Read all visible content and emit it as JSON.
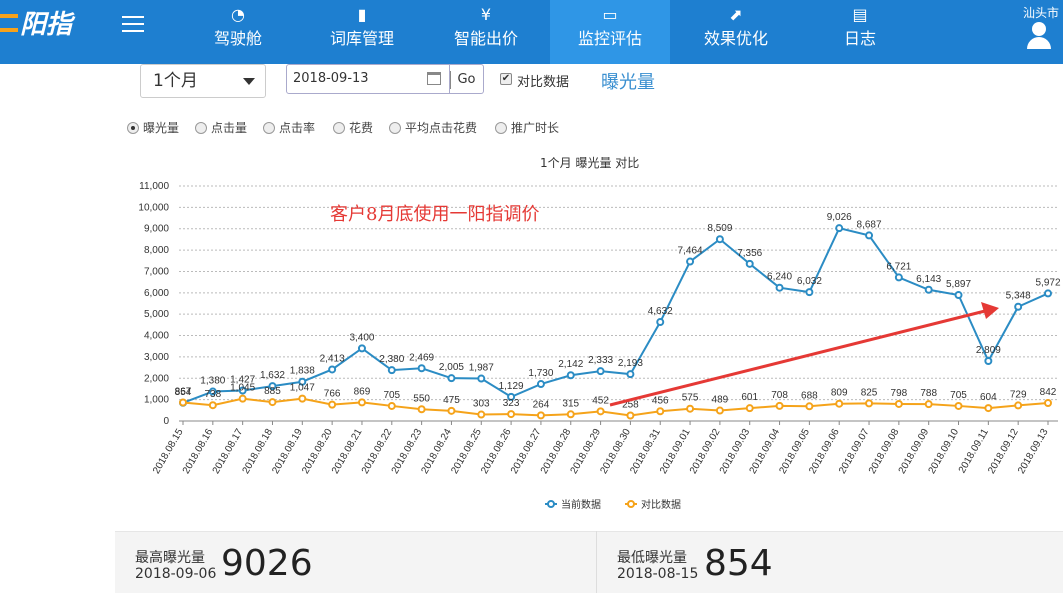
{
  "header": {
    "logo_text": "阳指",
    "city": "汕头市",
    "nav": [
      {
        "label": "驾驶舱",
        "icon": "dashboard-icon"
      },
      {
        "label": "词库管理",
        "icon": "bookmark-icon"
      },
      {
        "label": "智能出价",
        "icon": "yen-icon"
      },
      {
        "label": "监控评估",
        "icon": "monitor-icon"
      },
      {
        "label": "效果优化",
        "icon": "trend-icon"
      },
      {
        "label": "日志",
        "icon": "clipboard-icon"
      }
    ],
    "active_nav": "监控评估"
  },
  "controls": {
    "period": "1个月",
    "date": "2018-09-13",
    "go": "Go",
    "compare_label": "对比数据",
    "compare_checked": true,
    "metric_title": "曝光量"
  },
  "metrics": [
    {
      "label": "曝光量",
      "checked": true
    },
    {
      "label": "点击量",
      "checked": false
    },
    {
      "label": "点击率",
      "checked": false
    },
    {
      "label": "花费",
      "checked": false
    },
    {
      "label": "平均点击花费",
      "checked": false
    },
    {
      "label": "推广时长",
      "checked": false
    }
  ],
  "chart_caption": "1个月  曝光量  对比",
  "chart_data": {
    "type": "line",
    "ylim": [
      0,
      11000
    ],
    "yticks": [
      "0",
      "1,000",
      "2,000",
      "3,000",
      "4,000",
      "5,000",
      "6,000",
      "7,000",
      "8,000",
      "9,000",
      "10,000",
      "11,000"
    ],
    "categories": [
      "2018.08.15",
      "2018.08.16",
      "2018.08.17",
      "2018.08.18",
      "2018.08.19",
      "2018.08.20",
      "2018.08.21",
      "2018.08.22",
      "2018.08.23",
      "2018.08.24",
      "2018.08.25",
      "2018.08.26",
      "2018.08.27",
      "2018.08.28",
      "2018.08.29",
      "2018.08.30",
      "2018.08.31",
      "2018.09.01",
      "2018.09.02",
      "2018.09.03",
      "2018.09.04",
      "2018.09.05",
      "2018.09.06",
      "2018.09.07",
      "2018.09.08",
      "2018.09.09",
      "2018.09.10",
      "2018.09.11",
      "2018.09.12",
      "2018.09.13"
    ],
    "series": [
      {
        "name": "当前数据",
        "color": "#2b8cc4",
        "values": [
          854,
          1380,
          1427,
          1632,
          1838,
          2413,
          3400,
          2380,
          2469,
          2005,
          1987,
          1129,
          1730,
          2142,
          2333,
          2193,
          4632,
          7464,
          8509,
          7356,
          6240,
          6032,
          9026,
          8687,
          6721,
          6143,
          5897,
          2809,
          5348,
          5972
        ],
        "labels": [
          "854",
          "1,380",
          "1,427",
          "1,632",
          "1,838",
          "2,413",
          "3,400",
          "2,380",
          "2,469",
          "2,005",
          "1,987",
          "1,129",
          "1,730",
          "2,142",
          "2,333",
          "2,193",
          "4,632",
          "7,464",
          "8,509",
          "7,356",
          "6,240",
          "6,032",
          "9,026",
          "8,687",
          "6,721",
          "6,143",
          "5,897",
          "2,809",
          "5,348",
          "5,972"
        ]
      },
      {
        "name": "对比数据",
        "color": "#f5a31a",
        "values": [
          867,
          738,
          1045,
          885,
          1047,
          766,
          869,
          705,
          550,
          475,
          303,
          323,
          264,
          315,
          452,
          258,
          456,
          575,
          489,
          601,
          708,
          688,
          809,
          825,
          798,
          788,
          705,
          604,
          729,
          842
        ],
        "labels": [
          "867",
          "738",
          "1,045",
          "885",
          "1,047",
          "766",
          "869",
          "705",
          "550",
          "475",
          "303",
          "323",
          "264",
          "315",
          "452",
          "258",
          "456",
          "575",
          "489",
          "601",
          "708",
          "688",
          "809",
          "825",
          "798",
          "788",
          "705",
          "604",
          "729",
          "842"
        ]
      }
    ],
    "annotation": "客户8月底使用一阳指调价",
    "grid": true,
    "legend": "bottom"
  },
  "stats": {
    "max_label": "最高曝光量",
    "max_date": "2018-09-06",
    "max_value": "9026",
    "min_label": "最低曝光量",
    "min_date": "2018-08-15",
    "min_value": "854"
  }
}
